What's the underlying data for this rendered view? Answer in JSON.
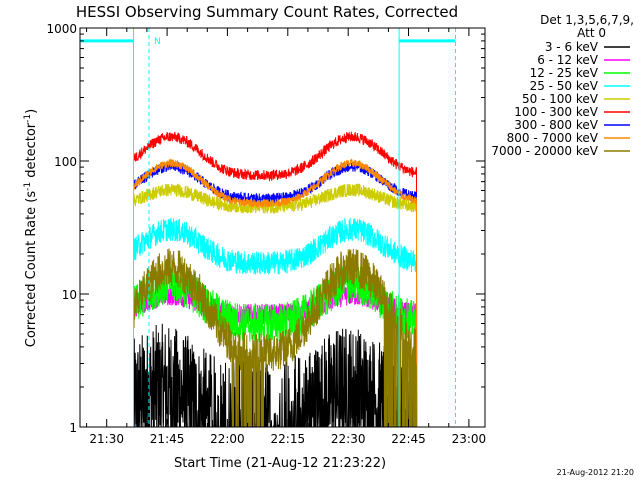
{
  "chart_data": {
    "type": "line",
    "title": "HESSI Observing Summary Count Rates, Corrected",
    "xlabel": "Start Time (21-Aug-12 21:23:22)",
    "ylabel": "Corrected Count Rate (s",
    "ylabel_sup1": "-1",
    "ylabel_mid": " detector",
    "ylabel_sup2": "-1",
    "ylabel_end": ")",
    "x_scale": "time",
    "x_range": [
      "21:23:22",
      "23:04:00"
    ],
    "x_ticks": [
      "21:30",
      "21:45",
      "22:00",
      "22:15",
      "22:30",
      "22:45",
      "23:00"
    ],
    "y_scale": "log",
    "ylim": [
      1,
      1000
    ],
    "y_ticks": [
      "1",
      "10",
      "100",
      "1000"
    ],
    "grid": false,
    "legend_position": "top-right",
    "legend_header": [
      "Det 1,3,5,6,7,9,",
      "Att 0"
    ],
    "flag_label": "N",
    "data_start": "21:36:40",
    "data_end": "22:47:00",
    "series": [
      {
        "name": "3 - 6 keV",
        "color": "#000000",
        "base": 1.0,
        "amplitude": 0.9,
        "peak_times": [
          "21:44",
          "22:30"
        ],
        "noise": 0.5,
        "dips": [
          "22:00",
          "22:15",
          "22:43"
        ]
      },
      {
        "name": "6 - 12 keV",
        "color": "#ff00ff",
        "base": 7.0,
        "amplitude": 0.4,
        "peak_times": [
          "21:46",
          "22:31"
        ],
        "noise": 0.08
      },
      {
        "name": "12 - 25 keV",
        "color": "#00ff00",
        "base": 6.0,
        "amplitude": 1.0,
        "peak_times": [
          "21:46",
          "22:31"
        ],
        "noise": 0.15
      },
      {
        "name": "25 - 50 keV",
        "color": "#00ffff",
        "base": 17.0,
        "amplitude": 0.8,
        "peak_times": [
          "21:46",
          "22:31"
        ],
        "noise": 0.09
      },
      {
        "name": "50 - 100 keV",
        "color": "#cccc00",
        "base": 45.0,
        "amplitude": 0.35,
        "peak_times": [
          "21:46",
          "22:31"
        ],
        "noise": 0.05
      },
      {
        "name": "100 - 300 keV",
        "color": "#ff0000",
        "base": 78.0,
        "amplitude": 0.95,
        "peak_times": [
          "21:46",
          "22:31"
        ],
        "noise": 0.04
      },
      {
        "name": "300 - 800 keV",
        "color": "#0000ff",
        "base": 52.0,
        "amplitude": 0.75,
        "peak_times": [
          "21:46",
          "22:31"
        ],
        "noise": 0.04
      },
      {
        "name": "800 - 7000 keV",
        "color": "#ff8800",
        "base": 48.0,
        "amplitude": 1.0,
        "peak_times": [
          "21:46",
          "22:31"
        ],
        "noise": 0.03
      },
      {
        "name": "7000 - 20000 keV",
        "color": "#8b7a00",
        "base": 3.5,
        "amplitude": 3.5,
        "peak_times": [
          "21:46",
          "22:31"
        ],
        "noise": 0.15,
        "dips": [
          "22:05",
          "22:43"
        ]
      }
    ],
    "attenuator_flags": [
      {
        "start": "21:23:22",
        "end": "21:36:40",
        "level": 800
      },
      {
        "start": "22:42:40",
        "end": "22:56:40",
        "level": 800
      }
    ],
    "vertical_markers": {
      "solid": [
        "21:36:40",
        "22:42:40"
      ],
      "dashed": [
        "21:40:30",
        "22:56:40"
      ]
    },
    "timestamp": "21-Aug-2012 21:20"
  }
}
